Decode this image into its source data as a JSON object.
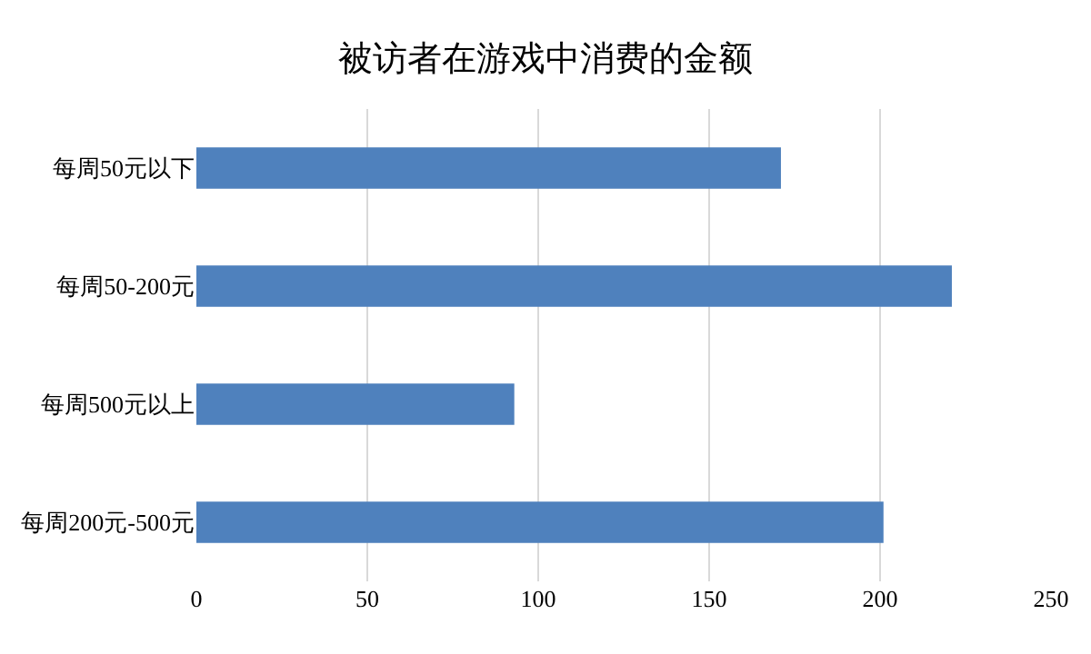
{
  "chart_data": {
    "type": "bar",
    "orientation": "horizontal",
    "title": "被访者在游戏中消费的金额",
    "categories": [
      "每周50元以下",
      "每周50-200元",
      "每周500元以上",
      "每周200元-500元"
    ],
    "values": [
      171,
      221,
      93,
      201
    ],
    "color": "#4f81bd",
    "xlim": [
      0,
      250
    ],
    "xticks": [
      0,
      50,
      100,
      150,
      200,
      250
    ],
    "grid": "x"
  }
}
